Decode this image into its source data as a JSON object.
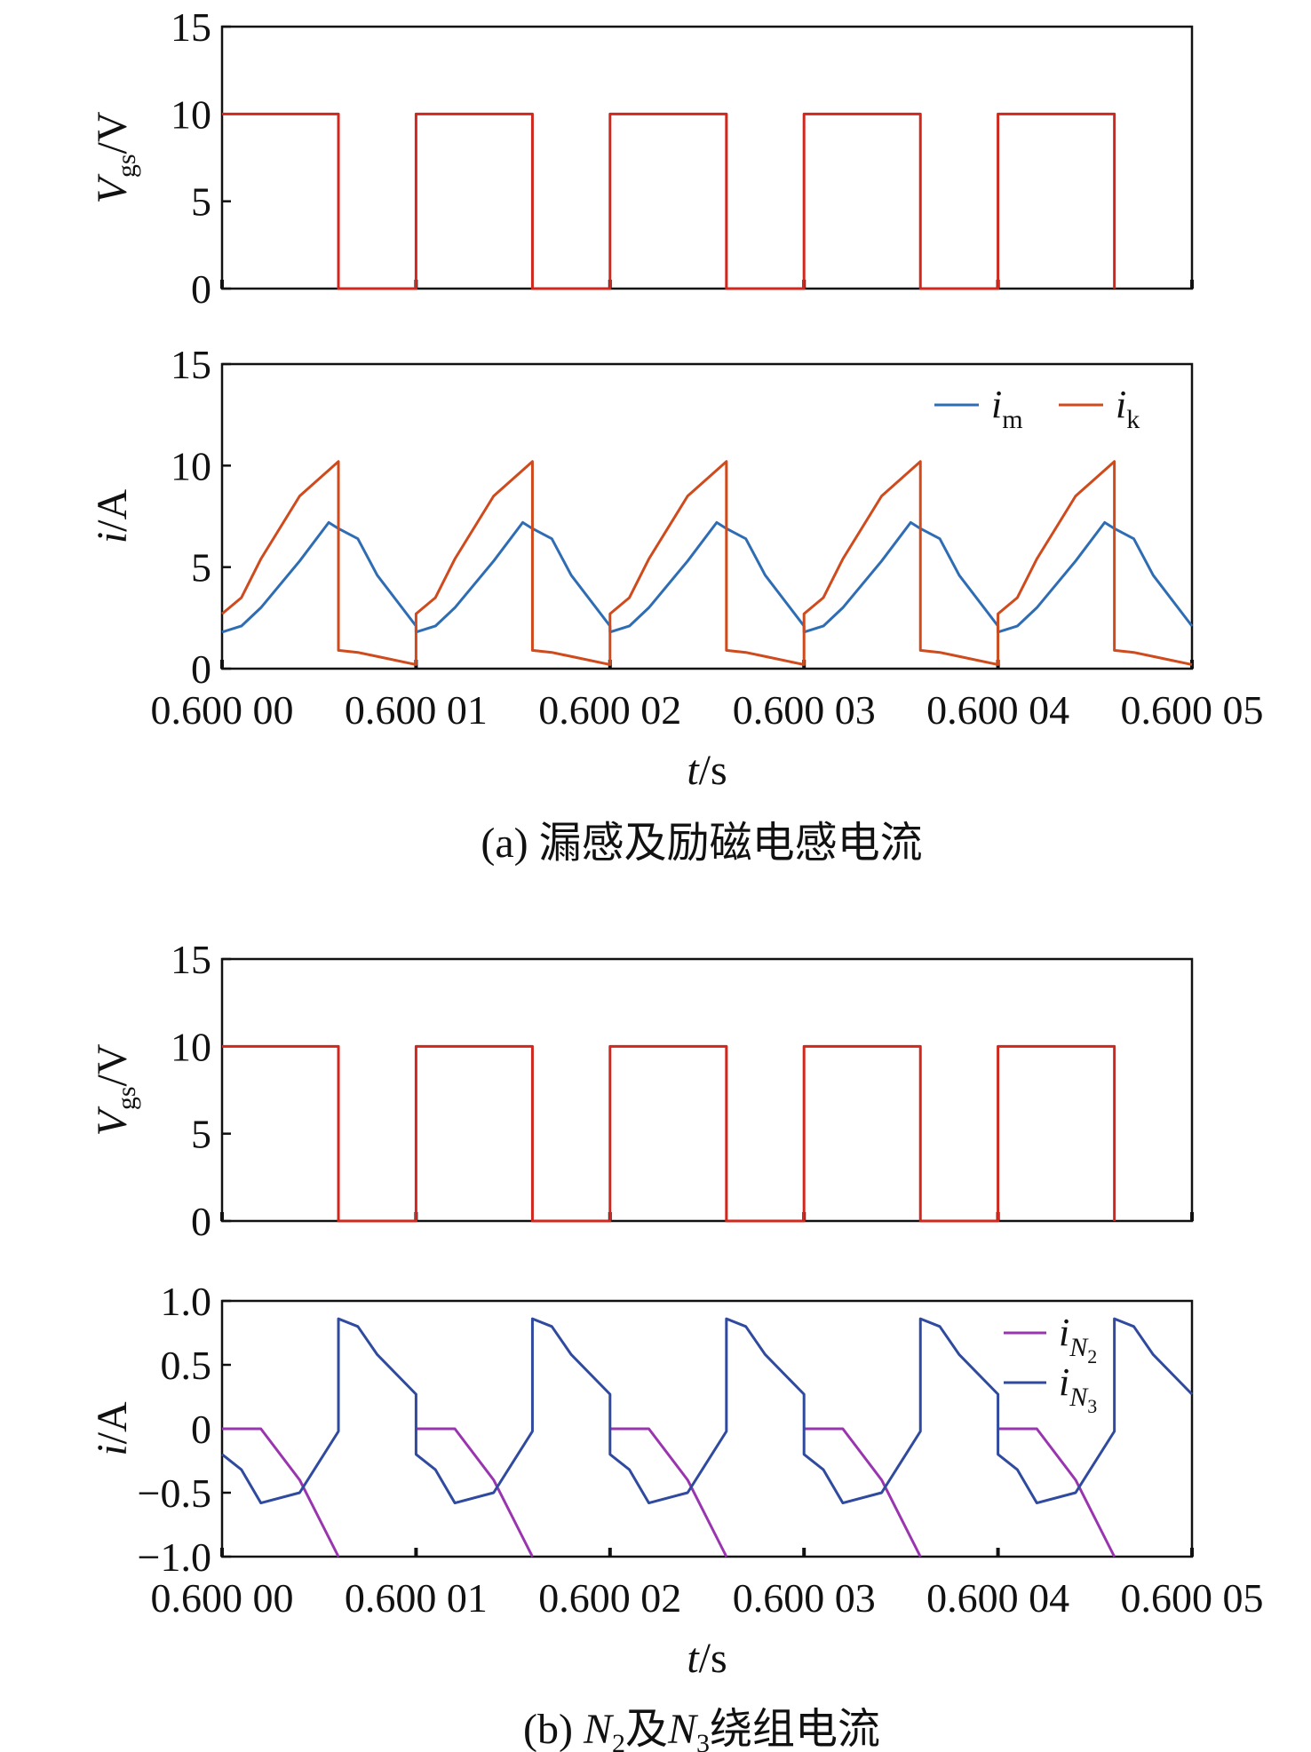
{
  "chart_data": [
    {
      "type": "line",
      "panel": "a-top",
      "ylabel_main": "V",
      "ylabel_sub": "gs",
      "ylabel_unit": "/V",
      "ylim": [
        0,
        15
      ],
      "yticks": [
        "0",
        "5",
        "10",
        "15"
      ],
      "xlim": [
        0,
        5
      ],
      "series": [
        {
          "color": "#d0281e",
          "x": [
            0,
            0.6,
            0.6,
            1,
            1,
            1.6,
            1.6,
            2,
            2,
            2.6,
            2.6,
            3,
            3,
            3.6,
            3.6,
            4,
            4,
            4.6,
            4.6
          ],
          "y": [
            10,
            10,
            0,
            0,
            10,
            10,
            0,
            0,
            10,
            10,
            0,
            0,
            10,
            10,
            0,
            0,
            10,
            10,
            0
          ]
        }
      ]
    },
    {
      "type": "line",
      "panel": "a-bottom",
      "ylabel_main": "i",
      "ylabel_unit": "/A",
      "ylim": [
        0,
        15
      ],
      "yticks": [
        "0",
        "5",
        "10",
        "15"
      ],
      "xlim": [
        0,
        5
      ],
      "xticks": [
        "0.600 00",
        "0.600 01",
        "0.600 02",
        "0.600 03",
        "0.600 04",
        "0.600 05"
      ],
      "xlabel_main": "t",
      "xlabel_unit": "/s",
      "caption": "(a) 漏感及励磁电感电流",
      "legend": [
        {
          "main": "i",
          "sub": "m",
          "color": "#2e6db4"
        },
        {
          "main": "i",
          "sub": "k",
          "color": "#cf4a1c"
        }
      ],
      "series": [
        {
          "name": "im",
          "color": "#2e6db4",
          "pattern_x": [
            0,
            0.1,
            0.2,
            0.4,
            0.55,
            0.6,
            0.7,
            0.8,
            1.0
          ],
          "pattern_y": [
            1.8,
            2.1,
            3.0,
            5.3,
            7.2,
            6.9,
            6.4,
            4.6,
            2.1
          ]
        },
        {
          "name": "ik",
          "color": "#cf4a1c",
          "pattern_x": [
            0,
            0.1,
            0.2,
            0.4,
            0.6,
            0.6,
            0.7,
            0.8,
            1.0
          ],
          "pattern_y": [
            2.7,
            3.5,
            5.4,
            8.5,
            10.2,
            0.9,
            0.8,
            0.6,
            0.2
          ]
        }
      ]
    },
    {
      "type": "line",
      "panel": "b-top",
      "ylabel_main": "V",
      "ylabel_sub": "gs",
      "ylabel_unit": "/V",
      "ylim": [
        0,
        15
      ],
      "yticks": [
        "0",
        "5",
        "10",
        "15"
      ],
      "xlim": [
        0,
        5
      ],
      "series": [
        {
          "color": "#d0281e",
          "x": [
            0,
            0.6,
            0.6,
            1,
            1,
            1.6,
            1.6,
            2,
            2,
            2.6,
            2.6,
            3,
            3,
            3.6,
            3.6,
            4,
            4,
            4.6,
            4.6
          ],
          "y": [
            10,
            10,
            0,
            0,
            10,
            10,
            0,
            0,
            10,
            10,
            0,
            0,
            10,
            10,
            0,
            0,
            10,
            10,
            0
          ]
        }
      ]
    },
    {
      "type": "line",
      "panel": "b-bottom",
      "ylabel_main": "i",
      "ylabel_unit": "/A",
      "ylim": [
        -1.0,
        1.0
      ],
      "yticks": [
        "−1.0",
        "−0.5",
        "0",
        "0.5",
        "1.0"
      ],
      "xlim": [
        0,
        5
      ],
      "xticks": [
        "0.600 00",
        "0.600 01",
        "0.600 02",
        "0.600 03",
        "0.600 04",
        "0.600 05"
      ],
      "xlabel_main": "t",
      "xlabel_unit": "/s",
      "caption_parts": [
        "(b) ",
        "N",
        "2",
        "及",
        "N",
        "3",
        "绕组电流"
      ],
      "legend": [
        {
          "main": "i",
          "sub": "N",
          "subsub": "2",
          "color": "#9a35b0"
        },
        {
          "main": "i",
          "sub": "N",
          "subsub": "3",
          "color": "#2f4a9e"
        }
      ],
      "series": [
        {
          "name": "iN2",
          "color": "#9a35b0",
          "pattern_x": [
            0,
            0.2,
            0.4,
            0.6,
            0.6
          ],
          "pattern_y": [
            0,
            0,
            -0.4,
            -1.0,
            -1.0
          ],
          "drop_at_end": true
        },
        {
          "name": "iN3",
          "color": "#2f4a9e",
          "pattern_x": [
            0,
            0.1,
            0.2,
            0.4,
            0.6,
            0.6,
            0.7,
            0.8,
            1.0
          ],
          "pattern_y": [
            -0.2,
            -0.32,
            -0.58,
            -0.5,
            -0.02,
            0.86,
            0.8,
            0.58,
            0.27
          ]
        }
      ]
    }
  ]
}
